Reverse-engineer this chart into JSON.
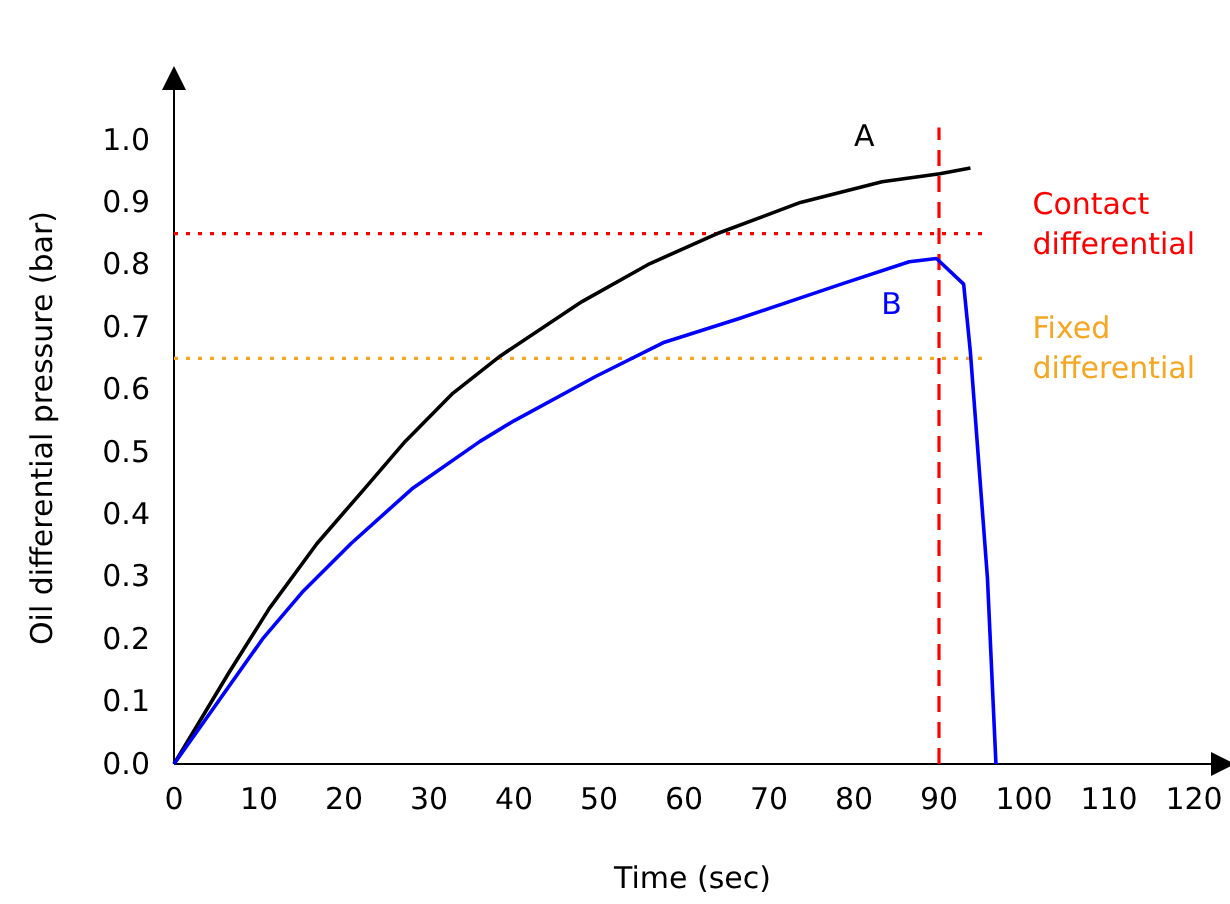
{
  "chart_data": {
    "type": "line",
    "xlabel": "Time (sec)",
    "ylabel": "Oil differential pressure  (bar)",
    "xlim": [
      0,
      122
    ],
    "ylim": [
      0,
      1.08
    ],
    "xticks": [
      0,
      10,
      20,
      30,
      40,
      50,
      60,
      70,
      80,
      90,
      100,
      110,
      120
    ],
    "yticks": [
      {
        "value": 0,
        "label": "0.0"
      },
      0.1,
      0.2,
      0.3,
      0.4,
      0.5,
      0.6,
      0.7,
      0.8,
      0.9,
      {
        "value": 1,
        "label": "1.0"
      }
    ],
    "grid": false,
    "legend": false,
    "line_style": "solid",
    "marker": "none",
    "series": [
      {
        "name": "A",
        "color": "#000000",
        "x": [
          0,
          6.4,
          11.2,
          16.8,
          22.4,
          27.2,
          32.8,
          38.4,
          48,
          56,
          64.1,
          73.7,
          83.3,
          90.1,
          93.7
        ],
        "values": [
          0,
          0.145,
          0.249,
          0.353,
          0.441,
          0.517,
          0.594,
          0.654,
          0.741,
          0.802,
          0.851,
          0.9,
          0.933,
          0.946,
          0.955
        ]
      },
      {
        "name": "B",
        "color": "#0000ff",
        "x": [
          0,
          10.4,
          15.2,
          20.8,
          28,
          36,
          40,
          49.6,
          57.7,
          66.5,
          78.5,
          86.5,
          89.7,
          92.9,
          93.7,
          95.7,
          96.7
        ],
        "values": [
          0,
          0.2,
          0.277,
          0.353,
          0.441,
          0.517,
          0.55,
          0.621,
          0.676,
          0.714,
          0.769,
          0.805,
          0.81,
          0.769,
          0.659,
          0.298,
          0
        ]
      }
    ],
    "ref_lines": [
      {
        "axis": "x",
        "value": 90,
        "color": "#ff0000",
        "line_style": "dashed"
      },
      {
        "axis": "y",
        "value": 0.85,
        "label": "Contact differential",
        "color": "#ff0000",
        "line_style": "dotted"
      },
      {
        "axis": "y",
        "value": 0.65,
        "label": "Fixed differential",
        "color": "#f5a623",
        "line_style": "dotted"
      }
    ]
  }
}
